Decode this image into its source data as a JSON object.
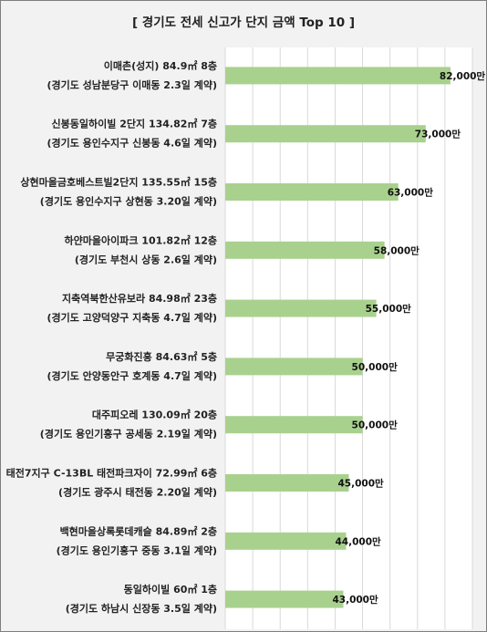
{
  "chart_data": {
    "type": "bar",
    "orientation": "horizontal",
    "title": "[ 경기도 전세 신고가 단지 금액 Top 10 ]",
    "categories": [
      [
        "이매촌(성지) 84.9㎡ 8층",
        "(경기도 성남분당구 이매동 2.3일 계약)"
      ],
      [
        "신봉동일하이빌 2단지 134.82㎡ 7층",
        "(경기도 용인수지구 신봉동 4.6일 계약)"
      ],
      [
        "상현마을금호베스트빌2단지 135.55㎡ 15층",
        "(경기도 용인수지구 상현동 3.20일 계약)"
      ],
      [
        "하얀마을아이파크 101.82㎡ 12층",
        "(경기도 부천시 상동 2.6일 계약)"
      ],
      [
        "지축역북한산유보라 84.98㎡ 23층",
        "(경기도 고양덕양구 지축동 4.7일 계약)"
      ],
      [
        "무궁화진흥 84.63㎡ 5층",
        "(경기도 안양동안구 호계동 4.7일 계약)"
      ],
      [
        "대주피오레 130.09㎡ 20층",
        "(경기도 용인기흥구 공세동 2.19일 계약)"
      ],
      [
        "태전7지구 C-13BL 태전파크자이 72.99㎡ 6층",
        "(경기도 광주시 태전동 2.20일 계약)"
      ],
      [
        "백현마을상록롯데캐슬 84.89㎡ 2층",
        "(경기도 용인기흥구 중동 3.1일 계약)"
      ],
      [
        "동일하이빌 60㎡ 1층",
        "(경기도 하남시 신장동 3.5일 계약)"
      ]
    ],
    "values": [
      82000,
      73000,
      63000,
      58000,
      55000,
      50000,
      50000,
      45000,
      44000,
      43000
    ],
    "value_labels": [
      "82,000만",
      "73,000만",
      "63,000만",
      "58,000만",
      "55,000만",
      "50,000만",
      "50,000만",
      "45,000만",
      "44,000만",
      "43,000만"
    ],
    "xlim": [
      0,
      90000
    ],
    "grid": true,
    "colors": {
      "bar": "#a9d18e",
      "background": "#f2f2f2",
      "plot": "#ffffff",
      "grid": "#d9d9d9"
    }
  }
}
